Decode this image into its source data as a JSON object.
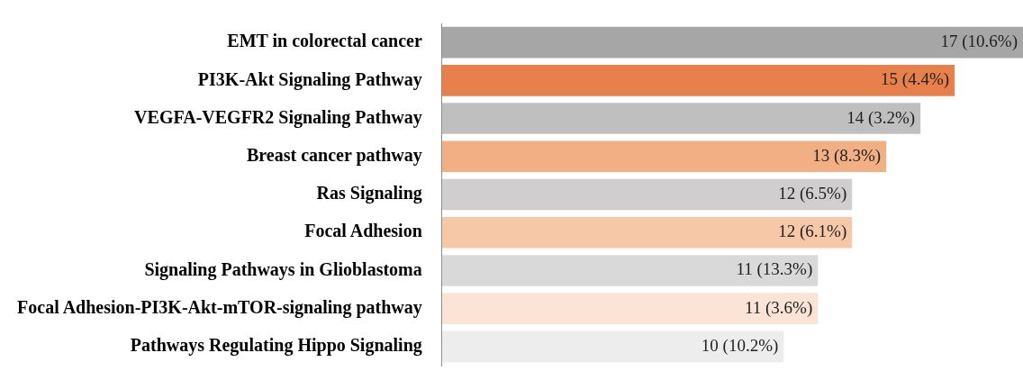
{
  "chart_data": {
    "type": "bar",
    "orientation": "horizontal",
    "categories": [
      "EMT in colorectal cancer",
      "PI3K-Akt Signaling Pathway",
      "VEGFA-VEGFR2 Signaling Pathway",
      "Breast cancer pathway",
      "Ras Signaling",
      "Focal Adhesion",
      "Signaling Pathways in Glioblastoma",
      "Focal Adhesion-PI3K-Akt-mTOR-signaling pathway",
      "Pathways Regulating Hippo Signaling"
    ],
    "values": [
      17,
      15,
      14,
      13,
      12,
      12,
      11,
      11,
      10
    ],
    "colors": [
      "#a6a6a6",
      "#e8804c",
      "#bfbfbf",
      "#f2af84",
      "#d0cece",
      "#f6c8a8",
      "#d9d9d9",
      "#fbe4d6",
      "#ededed"
    ],
    "value_labels": [
      "17 (10.6%)",
      "15 (4.4%)",
      "14 (3.2%)",
      "13 (8.3%)",
      "12 (6.5%)",
      "12 (6.1%)",
      "11 (13.3%)",
      "11 (3.6%)",
      "10 (10.2%)"
    ],
    "legend": false
  }
}
